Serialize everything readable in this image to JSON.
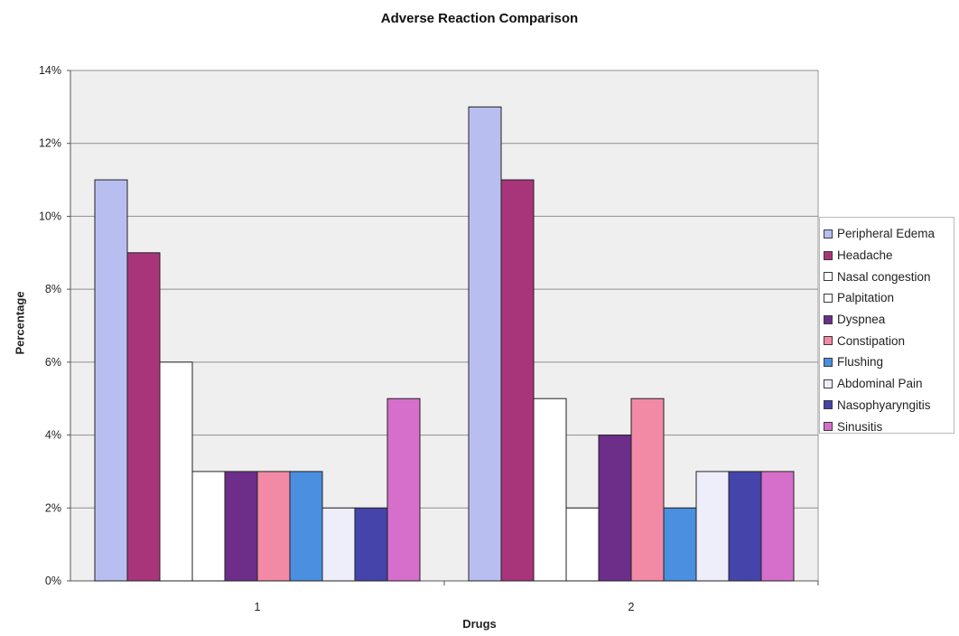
{
  "chart_data": {
    "type": "bar",
    "title": "Adverse Reaction Comparison",
    "xlabel": "Drugs",
    "ylabel": "Percentage",
    "ylim": [
      0,
      14
    ],
    "ytick_values": [
      0,
      2,
      4,
      6,
      8,
      10,
      12,
      14
    ],
    "ytick_labels": [
      "0%",
      "2%",
      "4%",
      "6%",
      "8%",
      "10%",
      "12%",
      "14%"
    ],
    "categories": [
      "1",
      "2"
    ],
    "grid": true,
    "legend_position": "right",
    "series": [
      {
        "name": "Peripheral Edema",
        "color": "#b8bff0",
        "values": [
          11,
          13
        ]
      },
      {
        "name": "Headache",
        "color": "#a8357a",
        "values": [
          9,
          11
        ]
      },
      {
        "name": "Nasal congestion",
        "color": "#ffffff",
        "values": [
          6,
          5
        ]
      },
      {
        "name": "Palpitation",
        "color": "#ffffff",
        "values": [
          3,
          2
        ]
      },
      {
        "name": "Dyspnea",
        "color": "#6d2e8a",
        "values": [
          3,
          4
        ]
      },
      {
        "name": "Constipation",
        "color": "#f28aa6",
        "values": [
          3,
          5
        ]
      },
      {
        "name": "Flushing",
        "color": "#4a8fe0",
        "values": [
          3,
          2
        ]
      },
      {
        "name": "Abdominal Pain",
        "color": "#eeeefa",
        "values": [
          2,
          3
        ]
      },
      {
        "name": "Nasophyaryngitis",
        "color": "#4444aa",
        "values": [
          2,
          3
        ]
      },
      {
        "name": "Sinusitis",
        "color": "#d66fcb",
        "values": [
          5,
          3
        ]
      }
    ]
  },
  "colors": {
    "plot_background": "#efefef",
    "gridline": "#8f8f8f",
    "bar_stroke": "#222222"
  }
}
